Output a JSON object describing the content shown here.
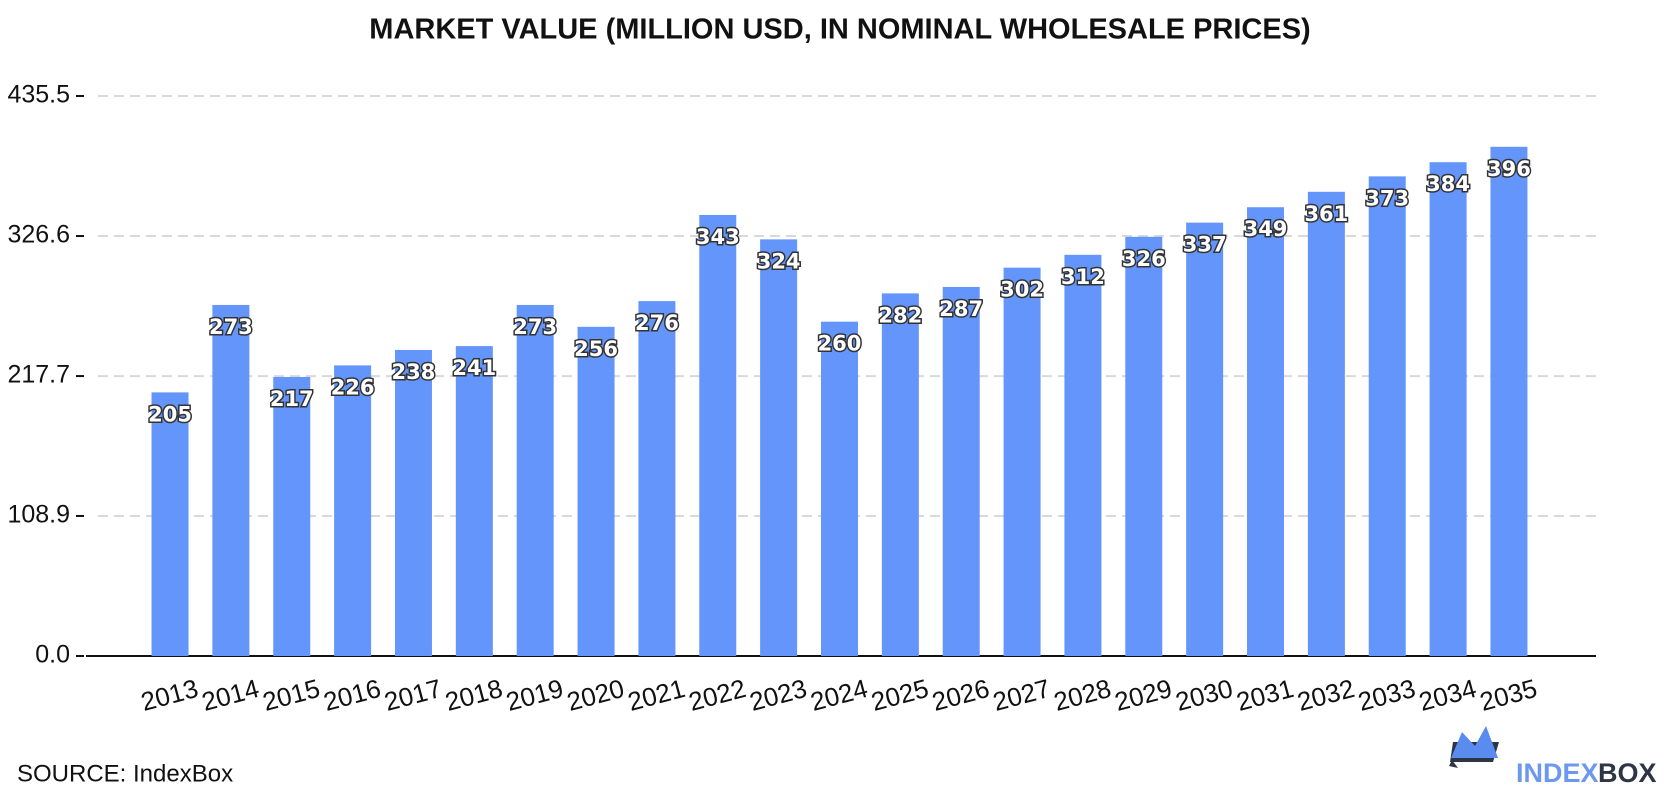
{
  "chart_data": {
    "type": "bar",
    "title": "MARKET VALUE (MILLION USD, IN NOMINAL WHOLESALE PRICES)",
    "categories": [
      "2013",
      "2014",
      "2015",
      "2016",
      "2017",
      "2018",
      "2019",
      "2020",
      "2021",
      "2022",
      "2023",
      "2024",
      "2025",
      "2026",
      "2027",
      "2028",
      "2029",
      "2030",
      "2031",
      "2032",
      "2033",
      "2034",
      "2035"
    ],
    "values": [
      205,
      273,
      217,
      226,
      238,
      241,
      273,
      256,
      276,
      343,
      324,
      260,
      282,
      287,
      302,
      312,
      326,
      337,
      349,
      361,
      373,
      384,
      396
    ],
    "color": "#6495fa",
    "ylim": [
      0,
      435.5
    ],
    "yticks": [
      {
        "value": 0,
        "label": "0.0"
      },
      108.9,
      217.7,
      326.6,
      435.5
    ],
    "grid": true
  },
  "footer": {
    "source": "SOURCE: IndexBox",
    "logo_left": "INDEX",
    "logo_right": "BOX"
  }
}
